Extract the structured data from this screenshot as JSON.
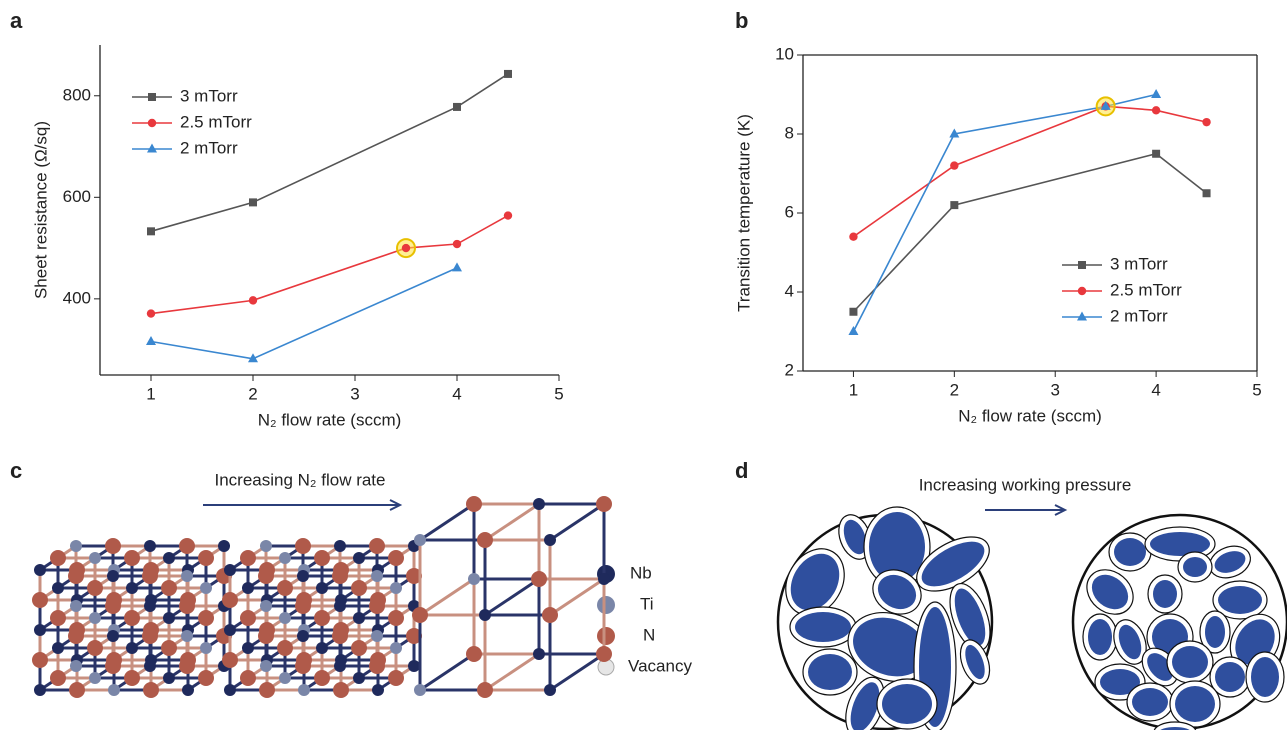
{
  "chart_data": [
    {
      "type": "line",
      "panel": "a",
      "x_label": "N₂ flow rate (sccm)",
      "y_label": "Sheet resistance (Ω/sq)",
      "xlim": [
        0.5,
        5
      ],
      "xticks": [
        1,
        2,
        3,
        4,
        5
      ],
      "ylim": [
        250,
        900
      ],
      "yticks": [
        400,
        600,
        800
      ],
      "legend": "upper left",
      "series": [
        {
          "name": "3 mTorr",
          "color": "#555555",
          "marker": "square",
          "x": [
            1,
            2,
            4,
            4.5
          ],
          "values": [
            533,
            590,
            778,
            843
          ]
        },
        {
          "name": "2.5 mTorr",
          "color": "#e8383d",
          "marker": "circle",
          "x": [
            1,
            2,
            3.5,
            4,
            4.5
          ],
          "values": [
            371,
            397,
            500,
            508,
            564
          ]
        },
        {
          "name": "2 mTorr",
          "color": "#3a87d0",
          "marker": "triangle",
          "x": [
            1,
            2,
            4
          ],
          "values": [
            316,
            282,
            461
          ]
        }
      ],
      "highlight": {
        "x": 3.5,
        "y": 500
      }
    },
    {
      "type": "line",
      "panel": "b",
      "x_label": "N₂ flow rate (sccm)",
      "y_label": "Transition temperature (K)",
      "xlim": [
        0.5,
        5
      ],
      "xticks": [
        1,
        2,
        3,
        4,
        5
      ],
      "ylim": [
        2,
        10
      ],
      "yticks": [
        2,
        4,
        6,
        8,
        10
      ],
      "legend": "lower right",
      "series": [
        {
          "name": "3 mTorr",
          "color": "#555555",
          "marker": "square",
          "x": [
            1,
            2,
            4,
            4.5
          ],
          "values": [
            3.5,
            6.2,
            7.5,
            6.5
          ]
        },
        {
          "name": "2.5 mTorr",
          "color": "#e8383d",
          "marker": "circle",
          "x": [
            1,
            2,
            3.5,
            4,
            4.5
          ],
          "values": [
            5.4,
            7.2,
            8.7,
            8.6,
            8.3
          ]
        },
        {
          "name": "2 mTorr",
          "color": "#3a87d0",
          "marker": "triangle",
          "x": [
            1,
            2,
            3.5,
            4
          ],
          "values": [
            3.0,
            8.0,
            8.7,
            9.0
          ]
        }
      ],
      "highlight": {
        "x": 3.5,
        "y": 8.7
      }
    }
  ],
  "diagrams": [
    {
      "panel": "c",
      "arrow_label": "Increasing N₂ flow rate",
      "legend": [
        "Nb",
        "Ti",
        "N",
        "Vacancy"
      ]
    },
    {
      "panel": "d",
      "arrow_label": "Increasing working pressure"
    }
  ]
}
